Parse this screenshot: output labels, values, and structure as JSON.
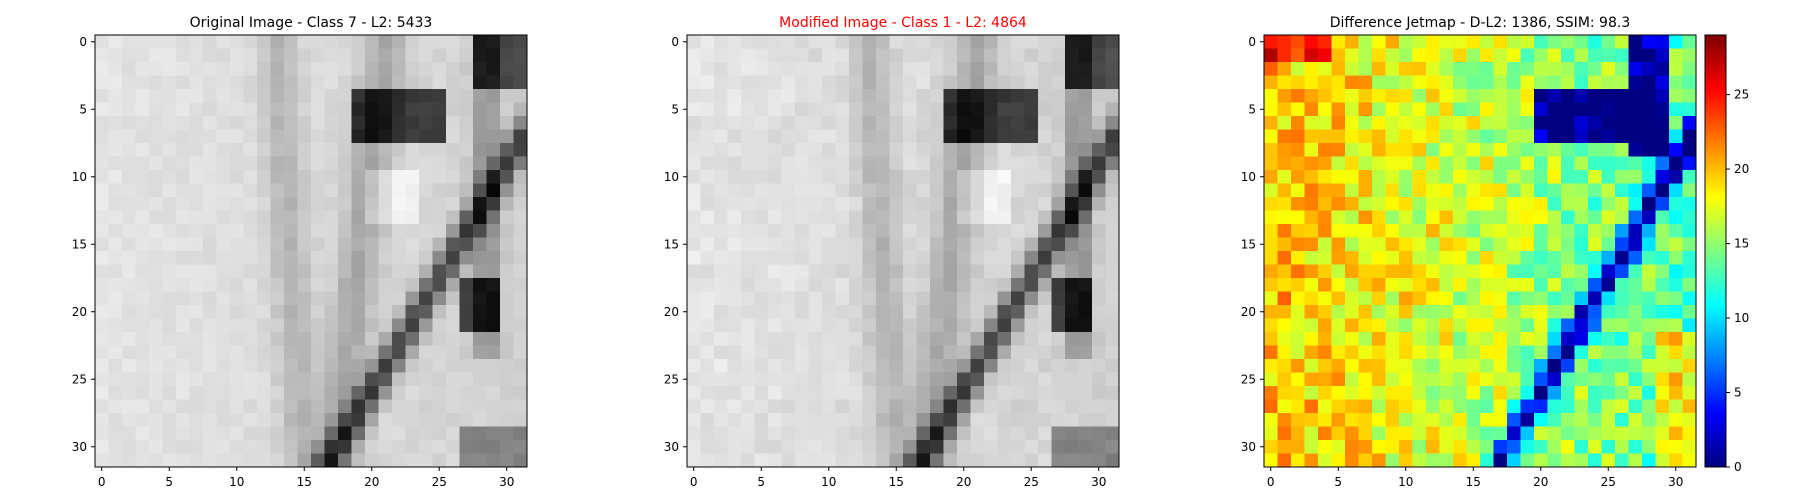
{
  "figure": {
    "panels": [
      {
        "title": "Original Image - Class 7 - L2: 5433",
        "title_color": "#000000"
      },
      {
        "title": "Modified Image - Class 1 - L2: 4864",
        "title_color": "#ff0000"
      },
      {
        "title": "Difference Jetmap - D-L2: 1386, SSIM: 98.3",
        "title_color": "#000000"
      }
    ],
    "colorbar_ticks": [
      "0",
      "5",
      "10",
      "15",
      "20",
      "25"
    ]
  },
  "chart_data": [
    {
      "type": "heatmap",
      "title": "Original Image - Class 7 - L2: 5433",
      "colormap": "gray",
      "xlim": [
        -0.5,
        31.5
      ],
      "ylim": [
        31.5,
        -0.5
      ],
      "xticks": [
        0,
        5,
        10,
        15,
        20,
        25,
        30
      ],
      "yticks": [
        0,
        5,
        10,
        15,
        20,
        25,
        30
      ],
      "grid": [
        32,
        32
      ]
    },
    {
      "type": "heatmap",
      "title": "Modified Image - Class 1 - L2: 4864",
      "colormap": "gray",
      "xlim": [
        -0.5,
        31.5
      ],
      "ylim": [
        31.5,
        -0.5
      ],
      "xticks": [
        0,
        5,
        10,
        15,
        20,
        25,
        30
      ],
      "yticks": [
        0,
        5,
        10,
        15,
        20,
        25,
        30
      ],
      "grid": [
        32,
        32
      ]
    },
    {
      "type": "heatmap",
      "title": "Difference Jetmap - D-L2: 1386, SSIM: 98.3",
      "colormap": "jet",
      "xlim": [
        -0.5,
        31.5
      ],
      "ylim": [
        31.5,
        -0.5
      ],
      "xticks": [
        0,
        5,
        10,
        15,
        20,
        25,
        30
      ],
      "yticks": [
        0,
        5,
        10,
        15,
        20,
        25,
        30
      ],
      "grid": [
        32,
        32
      ],
      "colorbar": {
        "min": 0,
        "max": 29,
        "ticks": [
          0,
          5,
          10,
          15,
          20,
          25
        ]
      }
    }
  ]
}
